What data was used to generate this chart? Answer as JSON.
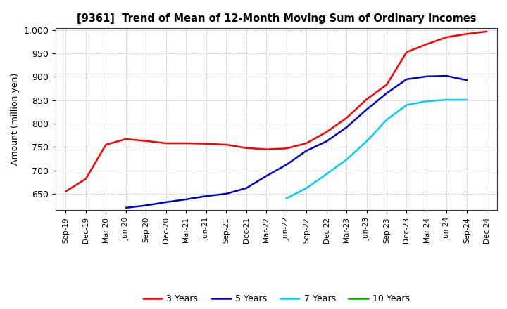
{
  "title": "[9361]  Trend of Mean of 12-Month Moving Sum of Ordinary Incomes",
  "ylabel": "Amount (million yen)",
  "ylim": [
    615,
    1005
  ],
  "yticks": [
    650,
    700,
    750,
    800,
    850,
    900,
    950,
    1000
  ],
  "ytick_labels": [
    "650",
    "700",
    "750",
    "800",
    "850",
    "900",
    "950",
    "1,000"
  ],
  "background_color": "#ffffff",
  "grid_color": "#999999",
  "x_labels": [
    "Sep-19",
    "Dec-19",
    "Mar-20",
    "Jun-20",
    "Sep-20",
    "Dec-20",
    "Mar-21",
    "Jun-21",
    "Sep-21",
    "Dec-21",
    "Mar-22",
    "Jun-22",
    "Sep-22",
    "Dec-22",
    "Mar-23",
    "Jun-23",
    "Sep-23",
    "Dec-23",
    "Mar-24",
    "Jun-24",
    "Sep-24",
    "Dec-24"
  ],
  "series": {
    "3 Years": {
      "color": "#ff0000",
      "data_x": [
        0,
        1,
        2,
        3,
        4,
        5,
        6,
        7,
        8,
        9,
        10,
        11,
        12,
        13,
        14,
        15,
        16,
        17,
        18,
        19,
        20,
        21
      ],
      "data_y": [
        655,
        682,
        755,
        767,
        763,
        758,
        758,
        757,
        755,
        748,
        745,
        747,
        758,
        782,
        812,
        852,
        883,
        953,
        970,
        985,
        992,
        997
      ]
    },
    "5 Years": {
      "color": "#0000cc",
      "data_x": [
        3,
        4,
        5,
        6,
        7,
        8,
        9,
        10,
        11,
        12,
        13,
        14,
        15,
        16,
        17,
        18,
        19,
        20
      ],
      "data_y": [
        620,
        625,
        632,
        638,
        645,
        650,
        662,
        688,
        712,
        742,
        762,
        792,
        830,
        865,
        895,
        901,
        902,
        893
      ]
    },
    "7 Years": {
      "color": "#00ccff",
      "data_x": [
        11,
        12,
        13,
        14,
        15,
        16,
        17,
        18,
        19,
        20
      ],
      "data_y": [
        640,
        662,
        692,
        723,
        762,
        808,
        840,
        848,
        851,
        851
      ]
    },
    "10 Years": {
      "color": "#00aa00",
      "data_x": [],
      "data_y": []
    }
  },
  "legend_entries": [
    "3 Years",
    "5 Years",
    "7 Years",
    "10 Years"
  ],
  "legend_colors": [
    "#ff0000",
    "#0000cc",
    "#00ccff",
    "#00aa00"
  ]
}
